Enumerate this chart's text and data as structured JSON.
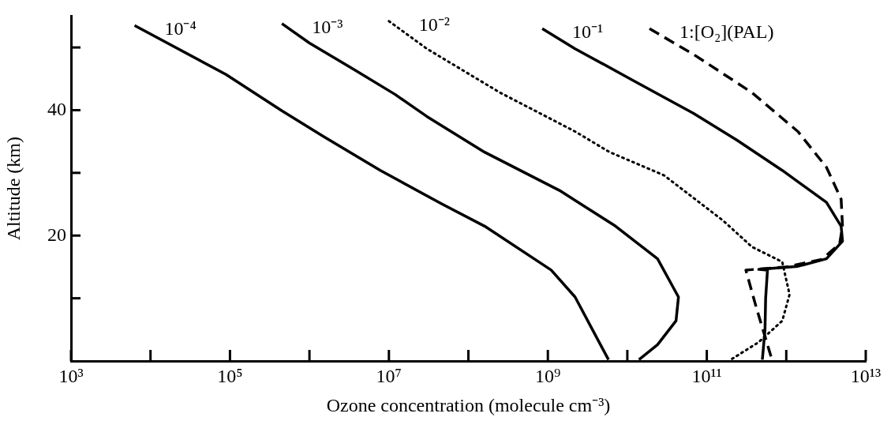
{
  "chart_data": {
    "type": "line",
    "xlabel": "Ozone concentration (molecule cm⁻³)",
    "ylabel": "Altitude (km)",
    "log": "x",
    "grid": false,
    "legend": false,
    "marker": "none",
    "xlim": [
      1000.0,
      10000000000000.0
    ],
    "ylim": [
      0,
      55
    ],
    "xticks": [
      {
        "value": 1000.0,
        "label": "10³"
      },
      {
        "value": 10000.0,
        "label": null
      },
      {
        "value": 100000.0,
        "label": "10⁵"
      },
      {
        "value": 1000000.0,
        "label": null
      },
      {
        "value": 10000000.0,
        "label": "10⁷"
      },
      {
        "value": 100000000.0,
        "label": null
      },
      {
        "value": 1000000000.0,
        "label": "10⁹"
      },
      {
        "value": 10000000000.0,
        "label": null
      },
      {
        "value": 100000000000.0,
        "label": "10¹¹"
      },
      {
        "value": 1000000000000.0,
        "label": null
      },
      {
        "value": 10000000000000.0,
        "label": "10¹³"
      }
    ],
    "yticks": [
      {
        "value": 10,
        "label": null
      },
      20,
      {
        "value": 30,
        "label": null
      },
      40,
      {
        "value": 50,
        "label": null
      }
    ],
    "series": [
      {
        "name": "10⁻⁴",
        "color": "#000000",
        "line_style": "solid",
        "x": [
          6300.0,
          89000.0,
          450000.0,
          1500000.0,
          7800000.0,
          47000000.0,
          160000000.0,
          1100000000.0,
          2200000000.0,
          3500000000.0,
          5800000000.0
        ],
        "values": [
          53.5,
          45.7,
          39.9,
          35.8,
          30.4,
          25,
          21.5,
          14.5,
          10.2,
          5.4,
          0.2
        ]
      },
      {
        "name": "10⁻³",
        "color": "#000000",
        "line_style": "solid",
        "x": [
          450000.0,
          1000000.0,
          3500000.0,
          12000000.0,
          30000000.0,
          160000000.0,
          1400000000.0,
          7100000000.0,
          24000000000.0,
          44000000000.0,
          41000000000.0,
          24000000000.0,
          14000000000.0
        ],
        "values": [
          53.8,
          50.7,
          46.6,
          42.5,
          39,
          33.3,
          27.2,
          21.5,
          16.3,
          10.2,
          6.4,
          2.6,
          0.2
        ]
      },
      {
        "name": "10⁻²",
        "color": "#000000",
        "line_style": "dotted",
        "x": [
          10000000.0,
          30000000.0,
          250000000.0,
          2200000000.0,
          6000000000.0,
          29000000000.0,
          160000000000.0,
          370000000000.0,
          890000000000.0,
          1100000000000.0,
          890000000000.0,
          450000000000.0,
          200000000000.0
        ],
        "values": [
          54.2,
          49.8,
          42.8,
          36.6,
          33.3,
          29.6,
          22.4,
          18.2,
          15.8,
          10.6,
          6.4,
          3,
          0.2
        ]
      },
      {
        "name": "10⁻¹",
        "color": "#000000",
        "line_style": "solid",
        "x": [
          850000000.0,
          2200000000.0,
          12000000000.0,
          68000000000.0,
          240000000000.0,
          890000000000.0,
          3200000000000.0,
          4900000000000.0,
          5100000000000.0,
          3200000000000.0,
          1400000000000.0,
          450000000000.0,
          580000000000.0,
          550000000000.0,
          540000000000.0,
          500000000000.0
        ],
        "values": [
          53,
          49.8,
          44.7,
          39.5,
          35.2,
          30.4,
          25.3,
          21.5,
          19.1,
          16.3,
          15.1,
          14.6,
          14.5,
          10,
          5,
          0.2
        ]
      },
      {
        "name": "1:[O₂](PAL)",
        "color": "#000000",
        "line_style": "dashed",
        "x": [
          19000000000.0,
          68000000000.0,
          370000000000.0,
          1400000000000.0,
          3200000000000.0,
          4900000000000.0,
          5100000000000.0,
          4700000000000.0,
          2800000000000.0,
          1000000000000.0,
          310000000000.0,
          420000000000.0,
          580000000000.0,
          660000000000.0
        ],
        "values": [
          53,
          48.9,
          42.8,
          36.6,
          30.9,
          25.8,
          21.5,
          18.7,
          16.2,
          15,
          14.5,
          8.5,
          2.6,
          0.2
        ]
      }
    ]
  }
}
